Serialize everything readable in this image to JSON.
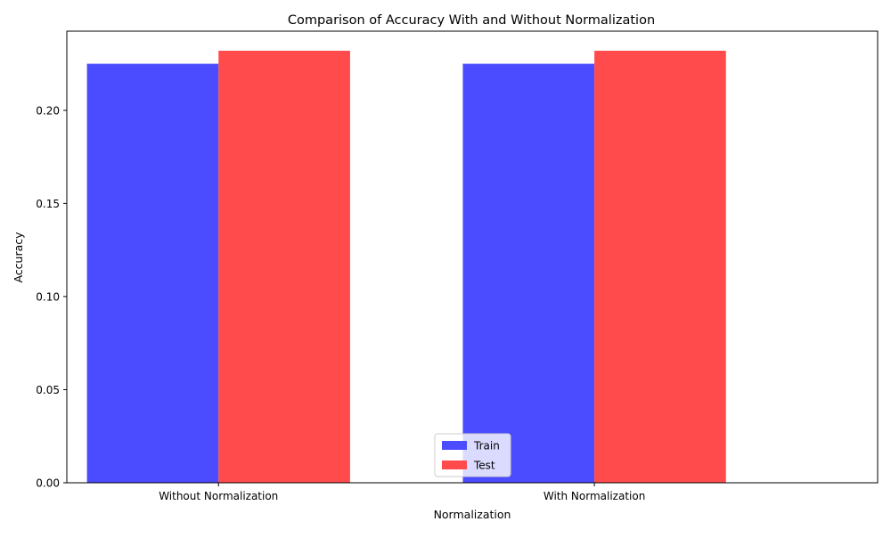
{
  "chart_data": {
    "type": "bar",
    "title": "Comparison of Accuracy With and Without Normalization",
    "xlabel": "Normalization",
    "ylabel": "Accuracy",
    "categories": [
      "Without Normalization",
      "With Normalization"
    ],
    "series": [
      {
        "name": "Train",
        "values": [
          0.225,
          0.225
        ],
        "color": "#4b4bff"
      },
      {
        "name": "Test",
        "values": [
          0.232,
          0.232
        ],
        "color": "#ff4b4b"
      }
    ],
    "ylim": [
      0,
      0.2425
    ],
    "yticks": [
      0.0,
      0.05,
      0.1,
      0.15,
      0.2
    ],
    "ytick_labels": [
      "0.00",
      "0.05",
      "0.10",
      "0.15",
      "0.20"
    ],
    "grid": false,
    "legend": {
      "placement": "lower center"
    }
  }
}
